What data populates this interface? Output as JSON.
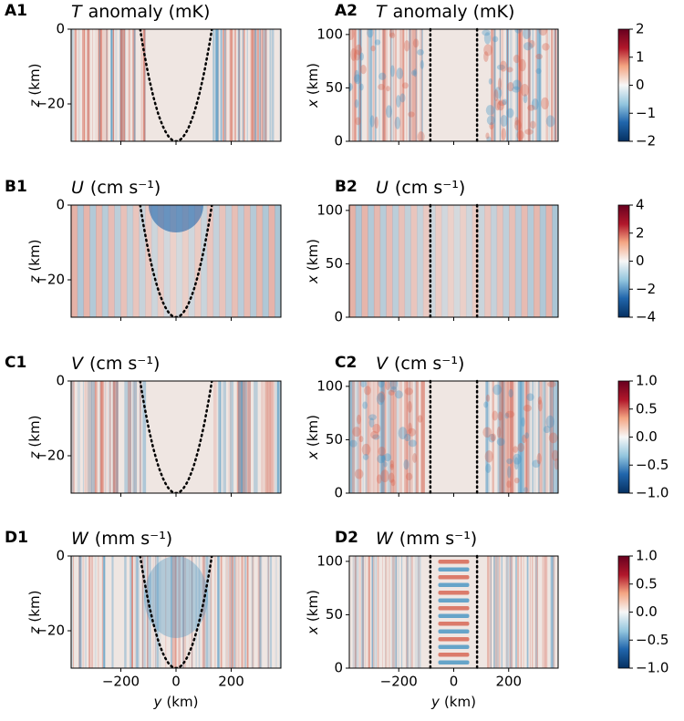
{
  "chart_data": [
    {
      "type": "heatmap",
      "panel": "A1",
      "symbol": "T",
      "units": "anomaly (mK)",
      "xlim": [
        -380,
        380
      ],
      "xticks": [
        {
          "value": -200,
          "label": "−200"
        },
        0,
        200
      ],
      "show_xtick_labels": false,
      "ylim": [
        -30,
        0
      ],
      "yticks": [
        {
          "value": -20,
          "label": "−20"
        },
        0
      ],
      "ylabel_symbol": "z",
      "ylabel_units": "(km)",
      "boundary_y": [
        -130,
        0,
        130
      ],
      "boundary_z": [
        0,
        -30,
        0
      ]
    },
    {
      "type": "heatmap",
      "panel": "A2",
      "symbol": "T",
      "units": "anomaly (mK)",
      "xlim": [
        -380,
        380
      ],
      "xticks": [
        {
          "value": -200,
          "label": "−200"
        },
        0,
        200
      ],
      "show_xtick_labels": false,
      "ylim": [
        0,
        105
      ],
      "yticks": [
        0,
        50,
        100
      ],
      "ylabel_symbol": "x",
      "ylabel_units": "(km)",
      "boundary_y": [
        -85,
        85
      ],
      "colorbar": {
        "lim": [
          -2,
          2
        ],
        "ticks": [
          {
            "value": -2,
            "label": "−2"
          },
          {
            "value": -1,
            "label": "−1"
          },
          0,
          1,
          2
        ]
      }
    },
    {
      "type": "heatmap",
      "panel": "B1",
      "symbol": "U",
      "units": "(cm s⁻¹)",
      "xlim": [
        -380,
        380
      ],
      "xticks": [
        {
          "value": -200,
          "label": "−200"
        },
        0,
        200
      ],
      "show_xtick_labels": false,
      "ylim": [
        -30,
        0
      ],
      "yticks": [
        {
          "value": -20,
          "label": "−20"
        },
        0
      ],
      "ylabel_symbol": "z",
      "ylabel_units": "(km)",
      "boundary_y": [
        -130,
        0,
        130
      ],
      "boundary_z": [
        0,
        -30,
        0
      ]
    },
    {
      "type": "heatmap",
      "panel": "B2",
      "symbol": "U",
      "units": "(cm s⁻¹)",
      "xlim": [
        -380,
        380
      ],
      "xticks": [
        {
          "value": -200,
          "label": "−200"
        },
        0,
        200
      ],
      "show_xtick_labels": false,
      "ylim": [
        0,
        105
      ],
      "yticks": [
        0,
        50,
        100
      ],
      "ylabel_symbol": "x",
      "ylabel_units": "(km)",
      "boundary_y": [
        -85,
        85
      ],
      "colorbar": {
        "lim": [
          -4,
          4
        ],
        "ticks": [
          {
            "value": -4,
            "label": "−4"
          },
          {
            "value": -2,
            "label": "−2"
          },
          0,
          2,
          4
        ]
      }
    },
    {
      "type": "heatmap",
      "panel": "C1",
      "symbol": "V",
      "units": "(cm s⁻¹)",
      "xlim": [
        -380,
        380
      ],
      "xticks": [
        {
          "value": -200,
          "label": "−200"
        },
        0,
        200
      ],
      "show_xtick_labels": false,
      "ylim": [
        -30,
        0
      ],
      "yticks": [
        {
          "value": -20,
          "label": "−20"
        },
        0
      ],
      "ylabel_symbol": "z",
      "ylabel_units": "(km)",
      "boundary_y": [
        -130,
        0,
        130
      ],
      "boundary_z": [
        0,
        -30,
        0
      ]
    },
    {
      "type": "heatmap",
      "panel": "C2",
      "symbol": "V",
      "units": "(cm s⁻¹)",
      "xlim": [
        -380,
        380
      ],
      "xticks": [
        {
          "value": -200,
          "label": "−200"
        },
        0,
        200
      ],
      "show_xtick_labels": false,
      "ylim": [
        0,
        105
      ],
      "yticks": [
        0,
        50,
        100
      ],
      "ylabel_symbol": "x",
      "ylabel_units": "(km)",
      "boundary_y": [
        -85,
        85
      ],
      "colorbar": {
        "lim": [
          -1,
          1
        ],
        "ticks": [
          {
            "value": -1,
            "label": "−1.0"
          },
          {
            "value": -0.5,
            "label": "−0.5"
          },
          {
            "value": 0,
            "label": "0.0"
          },
          0.5,
          {
            "value": 1,
            "label": "1.0"
          }
        ]
      }
    },
    {
      "type": "heatmap",
      "panel": "D1",
      "symbol": "W",
      "units": "(mm s⁻¹)",
      "xlim": [
        -380,
        380
      ],
      "xticks": [
        {
          "value": -200,
          "label": "−200"
        },
        0,
        200
      ],
      "show_xtick_labels": true,
      "xlabel_symbol": "y",
      "xlabel_units": "(km)",
      "ylim": [
        -30,
        0
      ],
      "yticks": [
        {
          "value": -20,
          "label": "−20"
        },
        0
      ],
      "ylabel_symbol": "z",
      "ylabel_units": "(km)",
      "boundary_y": [
        -130,
        0,
        130
      ],
      "boundary_z": [
        0,
        -30,
        0
      ]
    },
    {
      "type": "heatmap",
      "panel": "D2",
      "symbol": "W",
      "units": "(mm s⁻¹)",
      "xlim": [
        -380,
        380
      ],
      "xticks": [
        {
          "value": -200,
          "label": "−200"
        },
        0,
        200
      ],
      "show_xtick_labels": true,
      "xlabel_symbol": "y",
      "xlabel_units": "(km)",
      "ylim": [
        0,
        105
      ],
      "yticks": [
        0,
        50,
        100
      ],
      "ylabel_symbol": "x",
      "ylabel_units": "(km)",
      "boundary_y": [
        -85,
        85
      ],
      "colorbar": {
        "lim": [
          -1,
          1
        ],
        "ticks": [
          {
            "value": -1,
            "label": "−1.0"
          },
          {
            "value": -0.5,
            "label": "−0.5"
          },
          {
            "value": 0,
            "label": "0.0"
          },
          0.5,
          {
            "value": 1,
            "label": "1.0"
          }
        ]
      }
    }
  ]
}
